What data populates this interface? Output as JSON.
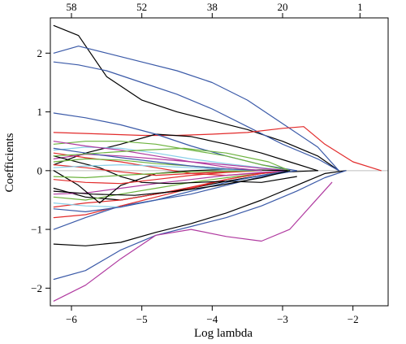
{
  "chart_data": {
    "type": "line",
    "xlabel": "Log lambda",
    "ylabel": "Coefficients",
    "xlim": [
      -6.3,
      -1.5
    ],
    "ylim": [
      -2.3,
      2.6
    ],
    "x_ticks": [
      -6,
      -5,
      -4,
      -3,
      -2
    ],
    "x_tick_labels": [
      "−6",
      "−5",
      "−4",
      "−3",
      "−2"
    ],
    "y_ticks": [
      2,
      1,
      0,
      -1,
      -2
    ],
    "y_tick_labels": [
      "2",
      "1",
      "0",
      "−1",
      "−2"
    ],
    "top_ticks": [
      -6.0,
      -5.0,
      -4.0,
      -3.0,
      -1.9
    ],
    "top_tick_labels": [
      "58",
      "52",
      "38",
      "20",
      "1"
    ],
    "grid": false,
    "legend": "none",
    "zero_reference_line": {
      "y": 0,
      "color": "#bfbfbf"
    },
    "series": [
      {
        "color": "#000000",
        "x": [
          -6.25,
          -5.9,
          -5.5,
          -5.0,
          -4.5,
          -4.0,
          -3.5,
          -3.0,
          -2.5,
          -2.2
        ],
        "values": [
          2.47,
          2.3,
          1.6,
          1.2,
          1.0,
          0.85,
          0.7,
          0.5,
          0.25,
          0.0
        ]
      },
      {
        "color": "#3b5aa8",
        "x": [
          -6.25,
          -5.9,
          -5.5,
          -5.0,
          -4.5,
          -4.0,
          -3.5,
          -3.0,
          -2.5,
          -2.2
        ],
        "values": [
          2.0,
          2.12,
          2.0,
          1.85,
          1.7,
          1.5,
          1.2,
          0.8,
          0.4,
          0.0
        ]
      },
      {
        "color": "#3b5aa8",
        "x": [
          -6.25,
          -5.9,
          -5.5,
          -5.0,
          -4.5,
          -4.0,
          -3.5,
          -3.0,
          -2.5,
          -2.2
        ],
        "values": [
          1.85,
          1.8,
          1.7,
          1.5,
          1.3,
          1.05,
          0.75,
          0.45,
          0.2,
          0.0
        ]
      },
      {
        "color": "#e22b2b",
        "x": [
          -6.25,
          -5.5,
          -5.0,
          -4.5,
          -4.0,
          -3.5,
          -3.0,
          -2.7,
          -2.4,
          -2.0,
          -1.6
        ],
        "values": [
          0.65,
          0.62,
          0.6,
          0.6,
          0.62,
          0.65,
          0.72,
          0.75,
          0.45,
          0.15,
          0.0
        ]
      },
      {
        "color": "#000000",
        "x": [
          -6.25,
          -5.8,
          -5.3,
          -4.8,
          -4.3,
          -3.8,
          -3.3,
          -2.8,
          -2.4,
          -2.1
        ],
        "values": [
          -1.25,
          -1.28,
          -1.22,
          -1.05,
          -0.9,
          -0.72,
          -0.5,
          -0.25,
          -0.05,
          0.0
        ]
      },
      {
        "color": "#3b5aa8",
        "x": [
          -6.25,
          -5.8,
          -5.3,
          -4.8,
          -4.3,
          -3.8,
          -3.3,
          -2.8,
          -2.4,
          -2.1
        ],
        "values": [
          -1.85,
          -1.7,
          -1.35,
          -1.1,
          -0.95,
          -0.8,
          -0.6,
          -0.35,
          -0.12,
          0.0
        ]
      },
      {
        "color": "#b03aa0",
        "x": [
          -6.25,
          -5.8,
          -5.3,
          -4.8,
          -4.3,
          -3.8,
          -3.3,
          -2.9,
          -2.6,
          -2.3
        ],
        "values": [
          -2.22,
          -1.95,
          -1.5,
          -1.1,
          -1.0,
          -1.12,
          -1.2,
          -1.0,
          -0.6,
          -0.2
        ]
      },
      {
        "color": "#000000",
        "x": [
          -6.25,
          -5.8,
          -5.3,
          -4.8,
          -4.3,
          -3.8,
          -3.3,
          -2.9,
          -2.5
        ],
        "values": [
          0.1,
          0.3,
          0.45,
          0.62,
          0.58,
          0.45,
          0.3,
          0.15,
          0.0
        ]
      },
      {
        "color": "#000000",
        "x": [
          -6.25,
          -5.8,
          -5.3,
          -4.8,
          -4.3,
          -3.8,
          -3.3,
          -2.9,
          -2.5
        ],
        "values": [
          -0.3,
          -0.45,
          -0.5,
          -0.4,
          -0.3,
          -0.18,
          -0.08,
          -0.02,
          0.0
        ]
      },
      {
        "color": "#3b5aa8",
        "x": [
          -6.25,
          -5.8,
          -5.3,
          -4.8,
          -4.3,
          -3.8,
          -3.3,
          -2.8
        ],
        "values": [
          0.98,
          0.9,
          0.78,
          0.62,
          0.42,
          0.25,
          0.1,
          0.0
        ]
      },
      {
        "color": "#3b5aa8",
        "x": [
          -6.25,
          -5.8,
          -5.3,
          -4.8,
          -4.3,
          -3.8,
          -3.3,
          -2.8
        ],
        "values": [
          -1.0,
          -0.8,
          -0.6,
          -0.5,
          -0.4,
          -0.25,
          -0.1,
          0.0
        ]
      },
      {
        "color": "#6db33f",
        "x": [
          -6.25,
          -5.8,
          -5.3,
          -4.8,
          -4.3,
          -3.8,
          -3.3,
          -2.9
        ],
        "values": [
          0.45,
          0.5,
          0.5,
          0.45,
          0.35,
          0.25,
          0.1,
          0.0
        ]
      },
      {
        "color": "#6db33f",
        "x": [
          -6.25,
          -5.8,
          -5.3,
          -4.8,
          -4.3,
          -3.8,
          -3.3,
          -2.9
        ],
        "values": [
          -0.45,
          -0.5,
          -0.4,
          -0.3,
          -0.2,
          -0.12,
          -0.05,
          0.0
        ]
      },
      {
        "color": "#e22b2b",
        "x": [
          -6.25,
          -5.8,
          -5.3,
          -4.8,
          -4.3,
          -3.8,
          -3.3,
          -2.9
        ],
        "values": [
          -0.8,
          -0.75,
          -0.6,
          -0.45,
          -0.3,
          -0.15,
          -0.05,
          0.0
        ]
      },
      {
        "color": "#e22b2b",
        "x": [
          -6.25,
          -5.8,
          -5.3,
          -4.8,
          -4.3,
          -3.8,
          -3.3,
          -2.9
        ],
        "values": [
          0.3,
          0.22,
          0.15,
          0.05,
          -0.05,
          -0.08,
          -0.04,
          0.0
        ]
      },
      {
        "color": "#e22b2b",
        "x": [
          -6.25,
          -5.8,
          -5.3,
          -4.8,
          -4.3,
          -3.8,
          -3.3,
          -2.9
        ],
        "values": [
          -0.62,
          -0.55,
          -0.5,
          -0.4,
          -0.28,
          -0.15,
          -0.05,
          0.0
        ]
      },
      {
        "color": "#87cfe8",
        "x": [
          -6.25,
          -5.8,
          -5.3,
          -4.8,
          -4.3,
          -3.8,
          -3.3,
          -2.9
        ],
        "values": [
          0.35,
          0.4,
          0.38,
          0.3,
          0.2,
          0.12,
          0.05,
          0.0
        ]
      },
      {
        "color": "#87cfe8",
        "x": [
          -6.25,
          -5.8,
          -5.3,
          -4.8,
          -4.3,
          -3.8,
          -3.3,
          -2.9
        ],
        "values": [
          -0.55,
          -0.6,
          -0.62,
          -0.5,
          -0.35,
          -0.2,
          -0.08,
          0.0
        ]
      },
      {
        "color": "#b03aa0",
        "x": [
          -6.25,
          -5.8,
          -5.3,
          -4.8,
          -4.3,
          -3.8,
          -3.3,
          -2.9
        ],
        "values": [
          0.2,
          0.28,
          0.25,
          0.2,
          0.15,
          0.1,
          0.04,
          0.0
        ]
      },
      {
        "color": "#b03aa0",
        "x": [
          -6.25,
          -5.8,
          -5.3,
          -4.8,
          -4.3,
          -3.8,
          -3.3,
          -2.9
        ],
        "values": [
          -0.4,
          -0.38,
          -0.3,
          -0.22,
          -0.15,
          -0.08,
          -0.03,
          0.0
        ]
      },
      {
        "color": "#3b5aa8",
        "x": [
          -6.25,
          -5.8,
          -5.3,
          -4.8,
          -4.3,
          -3.8,
          -3.3,
          -2.9
        ],
        "values": [
          -0.65,
          -0.7,
          -0.62,
          -0.5,
          -0.35,
          -0.2,
          -0.08,
          0.0
        ]
      },
      {
        "color": "#000000",
        "x": [
          -6.25,
          -5.9,
          -5.6,
          -5.3,
          -4.8,
          -4.3,
          -3.8,
          -3.3,
          -2.9
        ],
        "values": [
          0.0,
          -0.25,
          -0.55,
          -0.25,
          -0.05,
          0.0,
          0.02,
          0.01,
          0.0
        ]
      },
      {
        "color": "#000000",
        "x": [
          -6.25,
          -5.6,
          -5.3,
          -5.0,
          -4.6,
          -4.2,
          -3.8,
          -3.3,
          -2.8
        ],
        "values": [
          0.25,
          0.05,
          -0.1,
          -0.2,
          -0.22,
          -0.2,
          -0.18,
          -0.2,
          -0.1
        ]
      },
      {
        "color": "#e22b2b",
        "x": [
          -6.25,
          -5.8,
          -5.3,
          -4.8,
          -4.3,
          -3.8,
          -3.3
        ],
        "values": [
          0.1,
          0.05,
          -0.02,
          -0.08,
          -0.05,
          -0.02,
          0.0
        ]
      },
      {
        "color": "#e22b2b",
        "x": [
          -6.25,
          -5.8,
          -5.3,
          -4.8,
          -4.3,
          -3.8,
          -3.3
        ],
        "values": [
          -0.15,
          -0.2,
          -0.22,
          -0.15,
          -0.08,
          -0.03,
          0.0
        ]
      },
      {
        "color": "#6db33f",
        "x": [
          -6.25,
          -5.8,
          -5.3,
          -4.8,
          -4.3,
          -3.8,
          -3.3
        ],
        "values": [
          0.15,
          0.2,
          0.18,
          0.12,
          0.08,
          0.03,
          0.0
        ]
      },
      {
        "color": "#6db33f",
        "x": [
          -6.25,
          -5.8,
          -5.3,
          -4.8,
          -4.3,
          -3.8,
          -3.3
        ],
        "values": [
          -0.1,
          -0.12,
          -0.08,
          -0.05,
          -0.02,
          -0.01,
          0.0
        ]
      },
      {
        "color": "#87cfe8",
        "x": [
          -6.25,
          -5.8,
          -5.3,
          -4.8,
          -4.3,
          -3.8,
          -3.3
        ],
        "values": [
          0.05,
          0.08,
          0.1,
          0.08,
          0.05,
          0.02,
          0.0
        ]
      },
      {
        "color": "#3b5aa8",
        "x": [
          -6.25,
          -5.8,
          -5.3,
          -4.8,
          -4.3,
          -3.8,
          -3.3
        ],
        "values": [
          0.38,
          0.3,
          0.22,
          0.15,
          0.08,
          0.03,
          0.0
        ]
      },
      {
        "color": "#b03aa0",
        "x": [
          -6.25,
          -5.8,
          -5.3,
          -4.8,
          -4.3,
          -3.8,
          -3.3
        ],
        "values": [
          0.5,
          0.42,
          0.35,
          0.25,
          0.15,
          0.06,
          0.0
        ]
      },
      {
        "color": "#6db33f",
        "x": [
          -6.25,
          -5.6,
          -5.0,
          -4.4,
          -3.8,
          -3.2,
          -2.9
        ],
        "values": [
          0.25,
          0.3,
          0.35,
          0.38,
          0.3,
          0.15,
          0.0
        ]
      },
      {
        "color": "#000000",
        "x": [
          -6.25,
          -5.7,
          -5.1,
          -4.5,
          -3.9,
          -3.3,
          -2.9
        ],
        "values": [
          -0.35,
          -0.4,
          -0.42,
          -0.35,
          -0.25,
          -0.12,
          0.0
        ]
      }
    ]
  }
}
